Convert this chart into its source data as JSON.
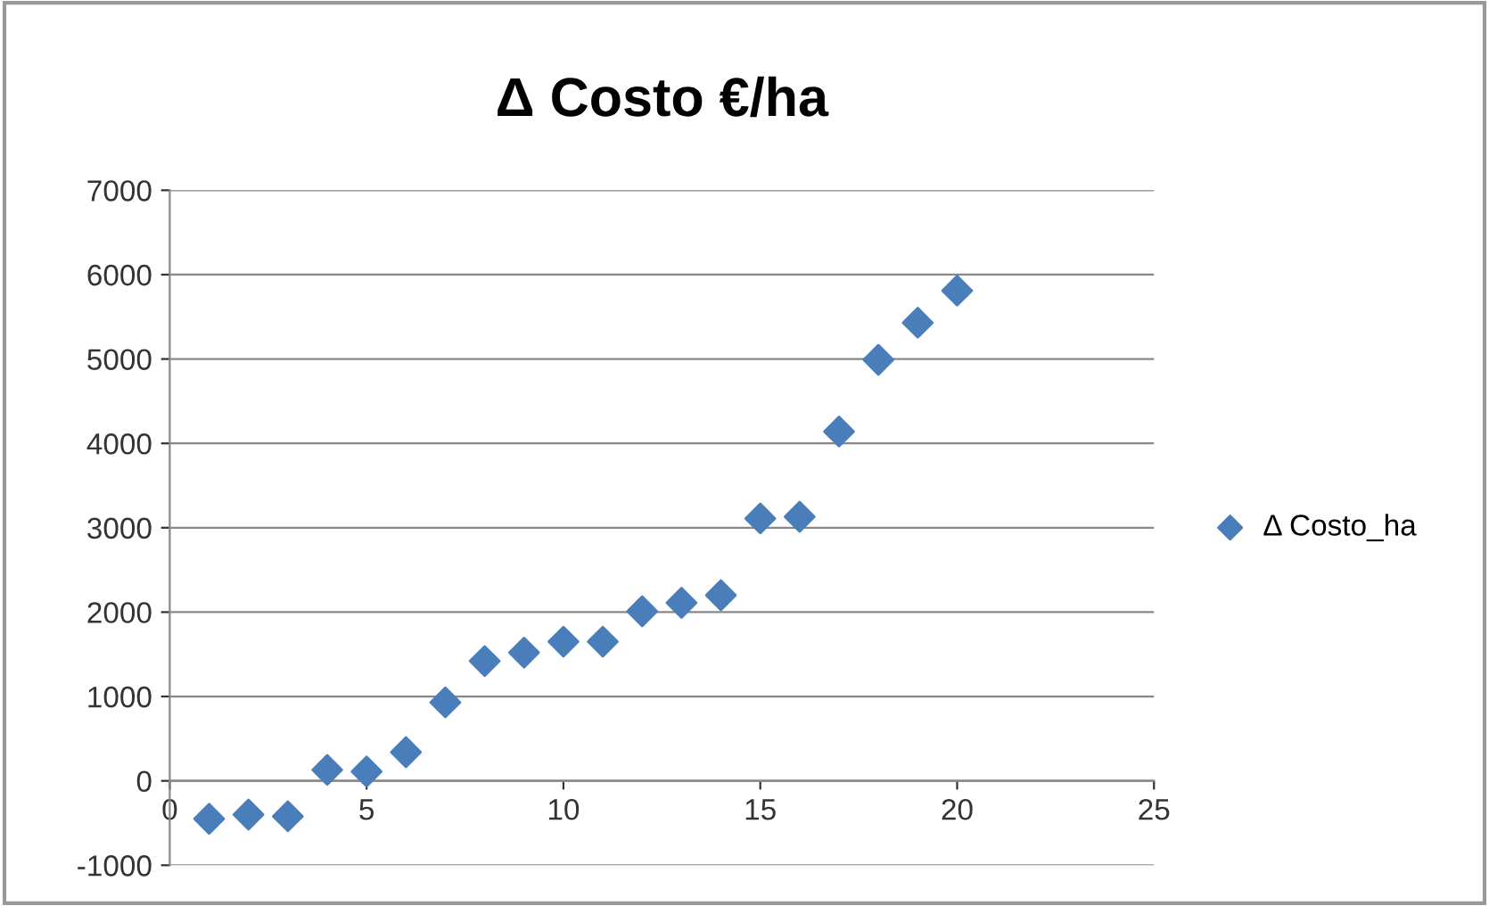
{
  "chart_data": {
    "type": "scatter",
    "title": "Δ Costo €/ha",
    "x": [
      1,
      2,
      3,
      4,
      5,
      6,
      7,
      8,
      9,
      10,
      11,
      12,
      13,
      14,
      15,
      16,
      17,
      18,
      19,
      20
    ],
    "series": [
      {
        "name": "Δ Costo_ha",
        "color": "#4a7ebb",
        "values": [
          -450,
          -400,
          -420,
          130,
          110,
          340,
          930,
          1420,
          1520,
          1650,
          1650,
          2010,
          2110,
          2200,
          3110,
          3130,
          4140,
          4990,
          5430,
          5810
        ]
      }
    ],
    "xlim": [
      0,
      25
    ],
    "xticks": [
      0,
      5,
      10,
      15,
      20,
      25
    ],
    "ylim": [
      -1000,
      7000
    ],
    "yticks": [
      -1000,
      0,
      1000,
      2000,
      3000,
      4000,
      5000,
      6000,
      7000
    ],
    "grid": "y",
    "legend": "right",
    "marker": "diamond"
  }
}
